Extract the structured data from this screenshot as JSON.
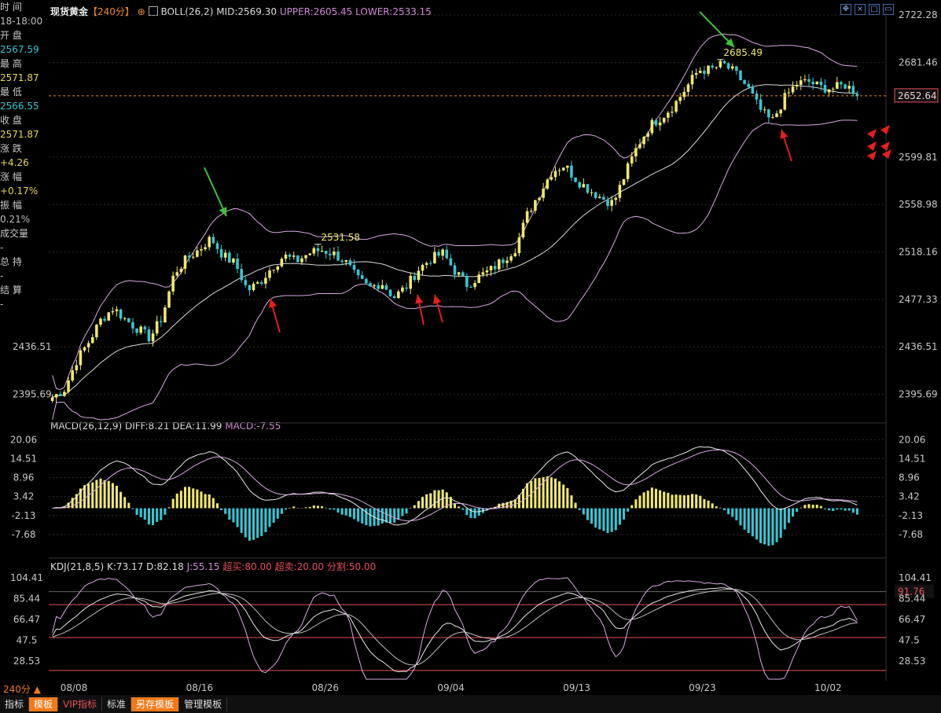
{
  "left_panel": [
    {
      "label": "时 间",
      "value": "18-18:00",
      "cls": "v-gray"
    },
    {
      "label": "开 盘",
      "value": "2567.59",
      "cls": "v-cyan"
    },
    {
      "label": "最 高",
      "value": "2571.87",
      "cls": "v-yel"
    },
    {
      "label": "最 低",
      "value": "2566.55",
      "cls": "v-cyan"
    },
    {
      "label": "收 盘",
      "value": "2571.87",
      "cls": "v-yel"
    },
    {
      "label": "涨 跌",
      "value": "+4.26",
      "cls": "v-yel"
    },
    {
      "label": "涨 幅",
      "value": "+0.17%",
      "cls": "v-yel"
    },
    {
      "label": "振 幅",
      "value": "0.21%",
      "cls": "v-gray"
    },
    {
      "label": "成交量",
      "value": "-",
      "cls": "v-gray"
    },
    {
      "label": "总 持",
      "value": "-",
      "cls": "v-gray"
    },
    {
      "label": "结 算",
      "value": "-",
      "cls": "v-gray"
    }
  ],
  "header": {
    "name": "现货黄金",
    "period": "【240分】",
    "boll": "BOLL(26,2) MID:2569.30",
    "upper": "UPPER:2605.45",
    "lower": "LOWER:2533.15"
  },
  "macd_title": {
    "name": "MACD(26,12,9)",
    "diff": "DIFF:8.21",
    "dea": "DEA:11.99",
    "macd": "MACD:-7.55"
  },
  "kdj_title": {
    "name": "KDJ(21,8,5)",
    "k": "K:73.17",
    "d": "D:82.18",
    "j": "J:55.15",
    "ob": "超买:80.00",
    "os": "超卖:20.00",
    "split": "分割:50.00"
  },
  "period_label": "240分 ▲",
  "bottom_tabs": [
    {
      "label": "指标",
      "cls": ""
    },
    {
      "label": "模板",
      "cls": "orange"
    },
    {
      "label": "VIP指标",
      "cls": "vip"
    },
    {
      "label": "标准",
      "cls": ""
    },
    {
      "label": "另存模板",
      "cls": "orange"
    },
    {
      "label": "管理模板",
      "cls": ""
    }
  ],
  "win_icons": [
    "expand-icon",
    "close-icon",
    "maximize-icon",
    "restore-icon"
  ],
  "current_price": "2652.64",
  "kdj_marker": "91.76",
  "colors": {
    "up": "#f1e86a",
    "down": "#35c7d6",
    "band": "#d7a8e0",
    "mid": "#d8d8d8",
    "grid": "#2a2a2a",
    "axis": "#c8c8c8"
  },
  "chart_data": [
    {
      "type": "candlestick",
      "title": "现货黄金",
      "yticks_right": [
        2722.28,
        2681.46,
        2599.81,
        2558.98,
        2518.16,
        2477.33,
        2436.51,
        2395.69
      ],
      "yticks_left": [
        2436.51,
        2395.69
      ],
      "ylim": [
        2375,
        2725
      ],
      "xticks": [
        "08/08",
        "08/16",
        "08/26",
        "09/04",
        "09/13",
        "09/23",
        "10/02"
      ],
      "annotations": [
        {
          "text": "2531.58",
          "type": "high"
        },
        {
          "text": "2685.49",
          "type": "high"
        }
      ],
      "close_keypoints": [
        2393,
        2400,
        2425,
        2441,
        2460,
        2470,
        2460,
        2452,
        2444,
        2462,
        2500,
        2512,
        2520,
        2530,
        2515,
        2508,
        2485,
        2492,
        2505,
        2515,
        2510,
        2517,
        2520,
        2517,
        2510,
        2495,
        2487,
        2492,
        2479,
        2488,
        2503,
        2512,
        2517,
        2502,
        2490,
        2497,
        2503,
        2512,
        2522,
        2552,
        2570,
        2588,
        2593,
        2580,
        2572,
        2565,
        2560,
        2586,
        2610,
        2627,
        2635,
        2645,
        2660,
        2675,
        2675,
        2680,
        2672,
        2660,
        2641,
        2630,
        2650,
        2663,
        2665,
        2660,
        2659,
        2662,
        2655
      ]
    },
    {
      "type": "line",
      "title": "MACD(26,12,9)",
      "series_names": [
        "DIFF",
        "DEA",
        "MACD"
      ],
      "yticks": [
        20.06,
        14.51,
        8.96,
        3.42,
        -2.13,
        -7.68
      ],
      "ylim": [
        -10,
        21.5
      ],
      "last": {
        "DIFF": 8.21,
        "DEA": 11.99,
        "MACD": -7.55
      }
    },
    {
      "type": "line",
      "title": "KDJ(21,8,5)",
      "series_names": [
        "K",
        "D",
        "J"
      ],
      "yticks": [
        104.41,
        85.44,
        66.47,
        47.5,
        28.53
      ],
      "ylim": [
        12,
        108
      ],
      "levels": {
        "overbought": 80,
        "oversold": 20,
        "split": 50
      },
      "marker": 91.76,
      "last": {
        "K": 73.17,
        "D": 82.18,
        "J": 55.15
      }
    }
  ]
}
